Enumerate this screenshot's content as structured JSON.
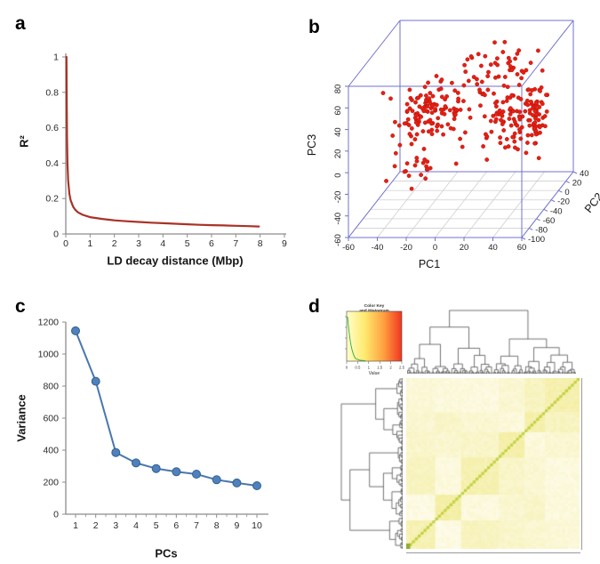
{
  "panels": {
    "a": "a",
    "b": "b",
    "c": "c",
    "d": "d"
  },
  "chart_data": [
    {
      "panel": "a",
      "type": "line",
      "xlabel": "LD decay distance (Mbp)",
      "ylabel": "R²",
      "xlim": [
        0,
        9
      ],
      "ylim": [
        0,
        1
      ],
      "xticks": [
        "0",
        "1",
        "2",
        "3",
        "4",
        "5",
        "6",
        "7",
        "8",
        "9"
      ],
      "yticks": [
        "0",
        "0.2",
        "0.4",
        "0.6",
        "0.8",
        "1"
      ],
      "line_color": "#a93226",
      "axis_color": "#8c8c8c",
      "points": [
        [
          0.03,
          1.0
        ],
        [
          0.04,
          0.72
        ],
        [
          0.05,
          0.55
        ],
        [
          0.07,
          0.4
        ],
        [
          0.1,
          0.3
        ],
        [
          0.15,
          0.225
        ],
        [
          0.2,
          0.19
        ],
        [
          0.3,
          0.155
        ],
        [
          0.4,
          0.135
        ],
        [
          0.5,
          0.122
        ],
        [
          0.7,
          0.108
        ],
        [
          1.0,
          0.095
        ],
        [
          1.5,
          0.085
        ],
        [
          2.0,
          0.077
        ],
        [
          2.5,
          0.072
        ],
        [
          3.0,
          0.068
        ],
        [
          3.5,
          0.064
        ],
        [
          4.0,
          0.061
        ],
        [
          4.5,
          0.058
        ],
        [
          5.0,
          0.055
        ],
        [
          5.5,
          0.052
        ],
        [
          6.0,
          0.05
        ],
        [
          6.5,
          0.048
        ],
        [
          7.0,
          0.046
        ],
        [
          7.5,
          0.044
        ],
        [
          7.95,
          0.042
        ]
      ]
    },
    {
      "panel": "b",
      "type": "scatter",
      "projection": "3d",
      "xlabel": "PC1",
      "ylabel": "PC2",
      "zlabel": "PC3",
      "xticks": [
        -60,
        -40,
        -20,
        0,
        20,
        40,
        60
      ],
      "yticks": [
        -100,
        -80,
        -60,
        -40,
        -20,
        0,
        20,
        40
      ],
      "zticks": [
        -60,
        -40,
        -20,
        0,
        20,
        40,
        60,
        80
      ],
      "point_color": "#e71f13",
      "point_edge_color": "#a50f08",
      "box_color": "#7070cf",
      "grid_color": "#cfcfcf",
      "seed": 42,
      "clusters": [
        {
          "n": 120,
          "center": [
            -15,
            -50,
            35
          ],
          "sd": [
            11,
            16,
            13
          ]
        },
        {
          "n": 130,
          "center": [
            45,
            -45,
            25
          ],
          "sd": [
            13,
            16,
            12
          ]
        },
        {
          "n": 60,
          "center": [
            18,
            -5,
            50
          ],
          "sd": [
            16,
            14,
            13
          ]
        },
        {
          "n": 22,
          "center": [
            -20,
            -75,
            -5
          ],
          "sd": [
            9,
            9,
            8
          ]
        }
      ]
    },
    {
      "panel": "c",
      "type": "line",
      "xlabel": "PCs",
      "ylabel": "Variance",
      "categories": [
        "1",
        "2",
        "3",
        "4",
        "5",
        "6",
        "7",
        "8",
        "9",
        "10"
      ],
      "values": [
        1145,
        830,
        385,
        320,
        285,
        265,
        250,
        215,
        195,
        178
      ],
      "ylim": [
        0,
        1200
      ],
      "yticks": [
        "0",
        "200",
        "400",
        "600",
        "800",
        "1000",
        "1200"
      ],
      "line_color": "#4a77ad",
      "marker_color": "#4f81bd",
      "marker_edge_color": "#33618e",
      "axis_color": "#8c8c8c"
    },
    {
      "panel": "d",
      "type": "heatmap",
      "n": 60,
      "block_sizes": [
        10,
        9,
        13,
        9,
        7,
        12
      ],
      "low_color": "#fffdf4",
      "high_color": "#f1ea8c",
      "diagonal_color": "#c3d145",
      "corner_accent_color": "#8fae2e",
      "dendrogram_color": "#4f4f4f",
      "seed": 7,
      "color_key": {
        "title_line1": "Color Key",
        "title_line2": "and Histogram",
        "xlabel": "Value",
        "xticks": [
          "0",
          "0.5",
          "1",
          "1.5",
          "2",
          "2.5"
        ],
        "gradient": [
          "#ffffcc",
          "#ffe96e",
          "#ffa040",
          "#f03520"
        ],
        "hist_color": "#2faa4a"
      }
    }
  ]
}
